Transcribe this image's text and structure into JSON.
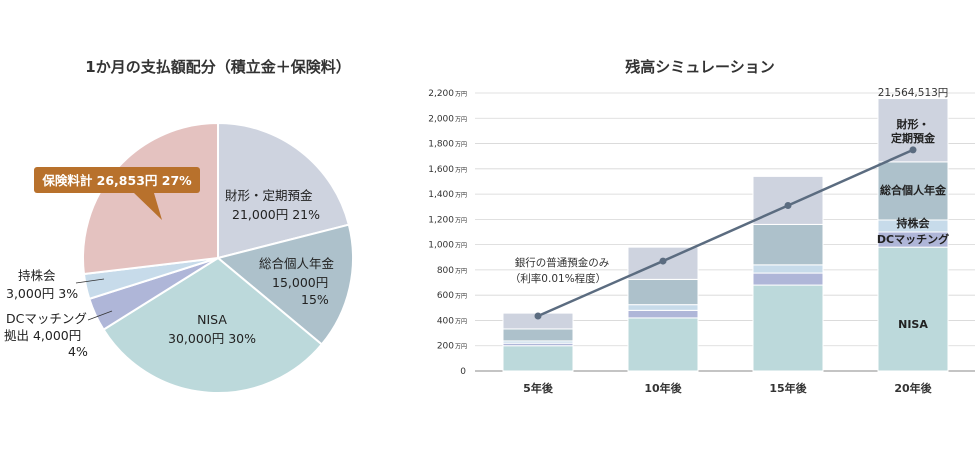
{
  "colors": {
    "insurance": "#e4c2c0",
    "zaikei": "#ced3df",
    "ideco": "#adc1cb",
    "nisa": "#bcd9db",
    "dc": "#afb6d8",
    "mochikabu": "#c7dbea",
    "callout": "#b8712c",
    "line": "#5b6c80",
    "grid": "#d6d6d6"
  },
  "chart_data": [
    {
      "type": "pie",
      "title": "1か月の支払額配分（積立金＋保険料）",
      "slices": [
        {
          "key": "zaikei",
          "name": "財形・定期預金",
          "value": 21000,
          "amount": "21,000円",
          "pct": "21%"
        },
        {
          "key": "ideco",
          "name": "総合個人年金",
          "value": 15000,
          "amount": "15,000円",
          "pct": "15%"
        },
        {
          "key": "nisa",
          "name": "NISA",
          "value": 30000,
          "amount": "30,000円",
          "pct": "30%"
        },
        {
          "key": "dc",
          "name": "DCマッチング 拠出",
          "value": 4000,
          "amount": "4,000円",
          "pct": "4%"
        },
        {
          "key": "mochikabu",
          "name": "持株会",
          "value": 3000,
          "amount": "3,000円",
          "pct": "3%"
        },
        {
          "key": "insurance",
          "name": "保険料計",
          "value": 26853,
          "amount": "26,853円",
          "pct": "27%"
        }
      ],
      "labels": {
        "zaikei": {
          "line1": "財形・定期預金",
          "line2": "21,000円 21%"
        },
        "ideco": {
          "line1": "総合個人年金",
          "line2": "15,000円",
          "line3": "15%"
        },
        "nisa": {
          "line1": "NISA",
          "line2": "30,000円 30%"
        },
        "mochikabu": {
          "line1": "持株会",
          "line2": "3,000円 3%"
        },
        "dc": {
          "line1": "DCマッチング",
          "line2": "拠出 4,000円",
          "line3": "4%"
        },
        "insurance": {
          "callout": "保険料計 26,853円 27%"
        }
      }
    },
    {
      "type": "bar",
      "stacked": true,
      "title": "残高シミュレーション",
      "categories": [
        "5年後",
        "10年後",
        "15年後",
        "20年後"
      ],
      "ylim": [
        0,
        2200
      ],
      "yticks": [
        0,
        200,
        400,
        600,
        800,
        1000,
        1200,
        1400,
        1600,
        1800,
        2000,
        2200
      ],
      "ytick_labels": [
        "0",
        "200",
        "400",
        "600",
        "800",
        "1,000",
        "1,200",
        "1,400",
        "1,600",
        "1,800",
        "2,000",
        "2,200"
      ],
      "yunit": "万円",
      "series": [
        {
          "name": "NISA",
          "key": "nisa",
          "values": [
            200,
            420,
            680,
            980
          ]
        },
        {
          "name": "DCマッチング",
          "key": "dc",
          "values": [
            20,
            60,
            95,
            120
          ]
        },
        {
          "name": "持株会",
          "key": "mochikabu",
          "values": [
            18,
            45,
            65,
            95
          ]
        },
        {
          "name": "総合個人年金",
          "key": "ideco",
          "values": [
            95,
            200,
            320,
            460
          ]
        },
        {
          "name": "財形・定期預金",
          "key": "zaikei",
          "values": [
            125,
            255,
            380,
            501
          ]
        }
      ],
      "total_label": "21,564,513円",
      "line_series": {
        "name": "銀行の普通預金のみ",
        "note": "（利率0.01%程度）",
        "values": [
          435,
          870,
          1310,
          1750
        ]
      },
      "segment_labels": {
        "zaikei": "財形・\n定期預金",
        "ideco": "総合個人年金",
        "mochikabu": "持株会",
        "dc": "DCマッチング",
        "nisa": "NISA"
      }
    }
  ]
}
